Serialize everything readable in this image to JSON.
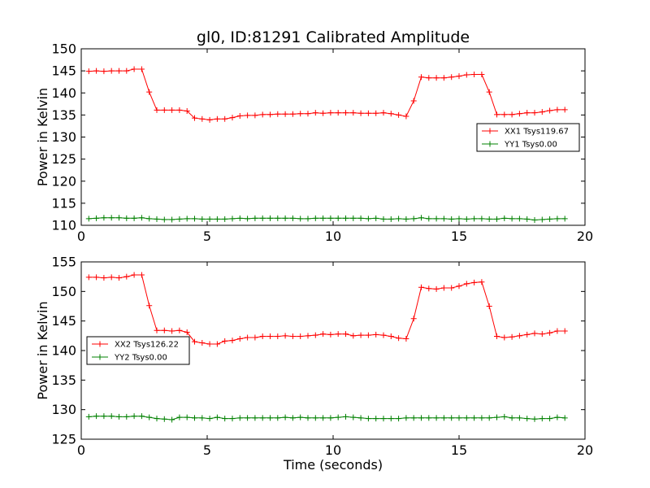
{
  "chart_data": [
    {
      "type": "line",
      "title": "gl0, ID:81291 Calibrated Amplitude",
      "xlabel": "",
      "ylabel": "Power in Kelvin",
      "xlim": [
        0,
        20
      ],
      "ylim": [
        110,
        150
      ],
      "xticks": [
        0,
        5,
        10,
        15,
        20
      ],
      "yticks": [
        110,
        115,
        120,
        125,
        130,
        135,
        140,
        145,
        150
      ],
      "legend_position": "center-right",
      "x": [
        0.3,
        0.6,
        0.9,
        1.2,
        1.5,
        1.8,
        2.1,
        2.4,
        2.7,
        3.0,
        3.3,
        3.6,
        3.9,
        4.2,
        4.5,
        4.8,
        5.1,
        5.4,
        5.7,
        6.0,
        6.3,
        6.6,
        6.9,
        7.2,
        7.5,
        7.8,
        8.1,
        8.4,
        8.7,
        9.0,
        9.3,
        9.6,
        9.9,
        10.2,
        10.5,
        10.8,
        11.1,
        11.4,
        11.7,
        12.0,
        12.3,
        12.6,
        12.9,
        13.2,
        13.5,
        13.8,
        14.1,
        14.4,
        14.7,
        15.0,
        15.3,
        15.6,
        15.9,
        16.2,
        16.5,
        16.8,
        17.1,
        17.4,
        17.7,
        18.0,
        18.3,
        18.6,
        18.9,
        19.2
      ],
      "series": [
        {
          "name": "XX1 Tsys119.67",
          "color": "#ff0000",
          "values": [
            144.9,
            145.0,
            144.9,
            145.0,
            145.0,
            145.0,
            145.4,
            145.4,
            140.2,
            136.1,
            136.1,
            136.1,
            136.1,
            135.9,
            134.3,
            134.1,
            133.9,
            134.1,
            134.1,
            134.4,
            134.8,
            134.9,
            134.9,
            135.1,
            135.1,
            135.2,
            135.2,
            135.2,
            135.3,
            135.3,
            135.5,
            135.4,
            135.5,
            135.5,
            135.5,
            135.5,
            135.4,
            135.4,
            135.4,
            135.5,
            135.3,
            135.0,
            134.7,
            138.2,
            143.6,
            143.4,
            143.4,
            143.4,
            143.6,
            143.8,
            144.1,
            144.2,
            144.2,
            140.2,
            135.1,
            135.1,
            135.1,
            135.3,
            135.5,
            135.5,
            135.7,
            136.0,
            136.2,
            136.2
          ]
        },
        {
          "name": "YY1 Tsys0.00",
          "color": "#008000",
          "values": [
            111.5,
            111.6,
            111.7,
            111.7,
            111.7,
            111.6,
            111.6,
            111.7,
            111.5,
            111.4,
            111.3,
            111.3,
            111.4,
            111.5,
            111.5,
            111.4,
            111.4,
            111.4,
            111.4,
            111.5,
            111.6,
            111.5,
            111.6,
            111.6,
            111.6,
            111.6,
            111.6,
            111.6,
            111.5,
            111.5,
            111.6,
            111.6,
            111.6,
            111.6,
            111.6,
            111.6,
            111.6,
            111.5,
            111.6,
            111.4,
            111.4,
            111.5,
            111.4,
            111.5,
            111.7,
            111.5,
            111.5,
            111.5,
            111.4,
            111.5,
            111.4,
            111.5,
            111.5,
            111.4,
            111.4,
            111.6,
            111.5,
            111.5,
            111.4,
            111.2,
            111.3,
            111.4,
            111.5,
            111.5
          ]
        }
      ]
    },
    {
      "type": "line",
      "title": "",
      "xlabel": "Time (seconds)",
      "ylabel": "Power in Kelvin",
      "xlim": [
        0,
        20
      ],
      "ylim": [
        125,
        155
      ],
      "xticks": [
        0,
        5,
        10,
        15,
        20
      ],
      "yticks": [
        125,
        130,
        135,
        140,
        145,
        150,
        155
      ],
      "legend_position": "center-left",
      "x": [
        0.3,
        0.6,
        0.9,
        1.2,
        1.5,
        1.8,
        2.1,
        2.4,
        2.7,
        3.0,
        3.3,
        3.6,
        3.9,
        4.2,
        4.5,
        4.8,
        5.1,
        5.4,
        5.7,
        6.0,
        6.3,
        6.6,
        6.9,
        7.2,
        7.5,
        7.8,
        8.1,
        8.4,
        8.7,
        9.0,
        9.3,
        9.6,
        9.9,
        10.2,
        10.5,
        10.8,
        11.1,
        11.4,
        11.7,
        12.0,
        12.3,
        12.6,
        12.9,
        13.2,
        13.5,
        13.8,
        14.1,
        14.4,
        14.7,
        15.0,
        15.3,
        15.6,
        15.9,
        16.2,
        16.5,
        16.8,
        17.1,
        17.4,
        17.7,
        18.0,
        18.3,
        18.6,
        18.9,
        19.2
      ],
      "series": [
        {
          "name": "XX2 Tsys126.22",
          "color": "#ff0000",
          "values": [
            152.4,
            152.4,
            152.3,
            152.4,
            152.3,
            152.5,
            152.8,
            152.8,
            147.6,
            143.4,
            143.4,
            143.3,
            143.4,
            143.1,
            141.5,
            141.3,
            141.1,
            141.1,
            141.6,
            141.7,
            142.0,
            142.2,
            142.2,
            142.4,
            142.4,
            142.4,
            142.5,
            142.4,
            142.4,
            142.5,
            142.6,
            142.8,
            142.7,
            142.8,
            142.8,
            142.5,
            142.6,
            142.6,
            142.7,
            142.6,
            142.4,
            142.1,
            142.0,
            145.4,
            150.7,
            150.5,
            150.4,
            150.6,
            150.6,
            150.9,
            151.3,
            151.5,
            151.6,
            147.5,
            142.4,
            142.2,
            142.3,
            142.5,
            142.7,
            142.9,
            142.8,
            143.0,
            143.3,
            143.3
          ]
        },
        {
          "name": "YY2 Tsys0.00",
          "color": "#008000",
          "values": [
            128.8,
            128.9,
            128.9,
            128.9,
            128.8,
            128.8,
            128.9,
            128.9,
            128.7,
            128.5,
            128.4,
            128.3,
            128.7,
            128.7,
            128.6,
            128.6,
            128.5,
            128.7,
            128.5,
            128.5,
            128.6,
            128.6,
            128.6,
            128.6,
            128.6,
            128.6,
            128.7,
            128.6,
            128.7,
            128.6,
            128.6,
            128.6,
            128.6,
            128.7,
            128.8,
            128.7,
            128.6,
            128.5,
            128.5,
            128.5,
            128.5,
            128.5,
            128.6,
            128.6,
            128.6,
            128.6,
            128.6,
            128.6,
            128.6,
            128.6,
            128.6,
            128.6,
            128.6,
            128.6,
            128.7,
            128.8,
            128.6,
            128.6,
            128.5,
            128.4,
            128.5,
            128.5,
            128.7,
            128.6
          ]
        }
      ]
    }
  ]
}
